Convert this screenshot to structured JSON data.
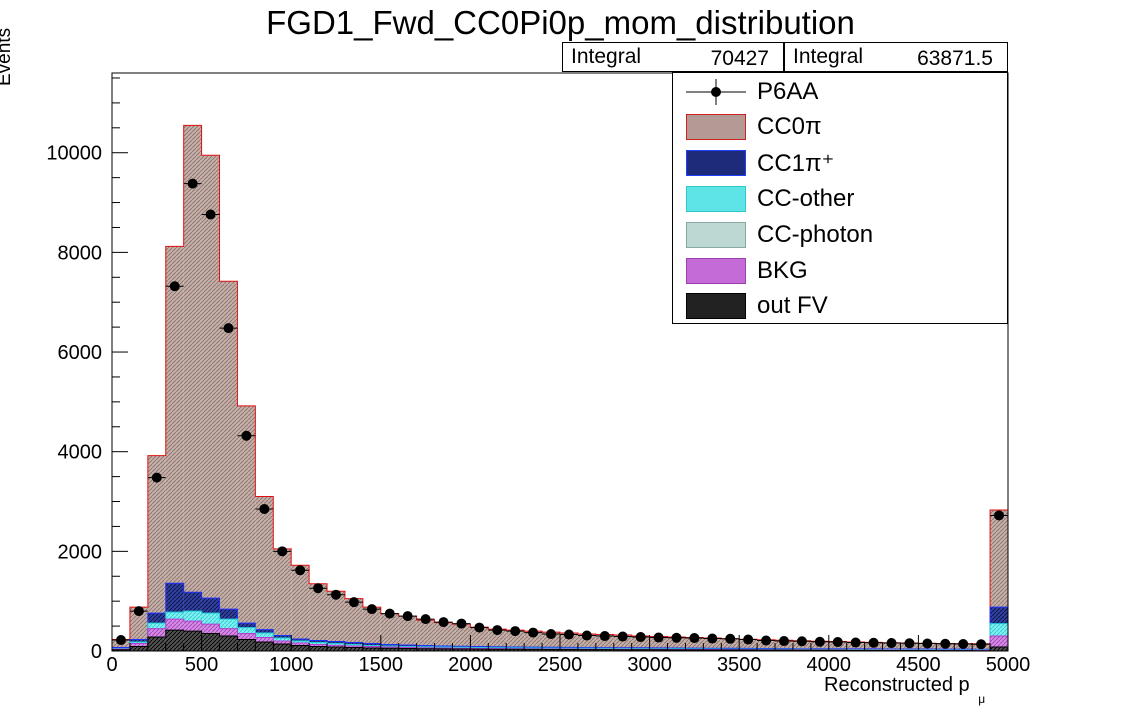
{
  "chart_data": {
    "type": "bar",
    "title": "FGD1_Fwd_CC0Pi0p_mom_distribution",
    "xlabel": "Reconstructed p",
    "xlabel_sub": "μ",
    "ylabel": "Events",
    "xlim": [
      0,
      5000
    ],
    "ylim": [
      0,
      11600
    ],
    "bin_width": 100,
    "x_ticks": [
      0,
      500,
      1000,
      1500,
      2000,
      2500,
      3000,
      3500,
      4000,
      4500,
      5000
    ],
    "y_ticks": [
      0,
      2000,
      4000,
      6000,
      8000,
      10000
    ],
    "grid": false,
    "legend_position": "top-right",
    "stats": [
      {
        "label": "Integral",
        "value": "70427"
      },
      {
        "label": "Integral",
        "value": "63871.5"
      }
    ],
    "stack_totals": [
      230,
      880,
      3920,
      8120,
      10550,
      9950,
      7420,
      4920,
      3100,
      2050,
      1720,
      1350,
      1200,
      1050,
      880,
      750,
      700,
      620,
      570,
      540,
      480,
      440,
      420,
      400,
      380,
      360,
      340,
      330,
      320,
      300,
      290,
      280,
      270,
      260,
      245,
      235,
      225,
      215,
      205,
      195,
      190,
      180,
      172,
      165,
      160,
      155,
      150,
      148,
      145,
      2830
    ],
    "cc1pi_top": [
      70,
      230,
      760,
      1360,
      1180,
      1060,
      840,
      560,
      430,
      310,
      240,
      210,
      190,
      170,
      150,
      130,
      120,
      110,
      100,
      95,
      90,
      85,
      80,
      78,
      75,
      72,
      70,
      68,
      66,
      64,
      62,
      60,
      58,
      56,
      54,
      52,
      50,
      48,
      46,
      45,
      44,
      43,
      42,
      41,
      40,
      39,
      38,
      37,
      36,
      880
    ],
    "ccother_top": [
      50,
      180,
      560,
      780,
      800,
      760,
      640,
      470,
      360,
      260,
      200,
      170,
      150,
      130,
      110,
      100,
      90,
      85,
      80,
      75,
      70,
      66,
      62,
      60,
      58,
      56,
      54,
      52,
      50,
      48,
      46,
      44,
      42,
      40,
      38,
      37,
      36,
      35,
      34,
      33,
      32,
      31,
      30,
      29,
      28,
      27,
      26,
      25,
      24,
      550
    ],
    "bkg_top": [
      40,
      150,
      450,
      640,
      600,
      540,
      450,
      350,
      270,
      200,
      160,
      130,
      115,
      100,
      90,
      80,
      72,
      66,
      60,
      56,
      52,
      48,
      45,
      43,
      41,
      39,
      37,
      35,
      34,
      33,
      32,
      31,
      30,
      29,
      28,
      27,
      26,
      25,
      24,
      23,
      22,
      21,
      20,
      19,
      18,
      17,
      16,
      15,
      14,
      300
    ],
    "outfv_top": [
      25,
      90,
      280,
      420,
      400,
      350,
      300,
      230,
      180,
      140,
      110,
      90,
      80,
      70,
      60,
      55,
      50,
      45,
      42,
      40,
      38,
      36,
      34,
      32,
      30,
      29,
      28,
      27,
      26,
      25,
      24,
      23,
      22,
      21,
      20,
      19,
      18,
      17,
      16,
      15,
      14,
      13,
      12,
      11,
      10,
      9,
      8,
      7,
      6,
      80
    ],
    "data_points": [
      220,
      800,
      3480,
      7320,
      9380,
      8760,
      6480,
      4320,
      2850,
      2000,
      1620,
      1260,
      1130,
      980,
      840,
      750,
      700,
      640,
      580,
      550,
      470,
      420,
      400,
      370,
      340,
      330,
      310,
      300,
      290,
      280,
      270,
      265,
      260,
      250,
      245,
      230,
      210,
      200,
      195,
      185,
      180,
      170,
      165,
      160,
      155,
      150,
      145,
      140,
      135,
      2720
    ],
    "series": [
      {
        "name": "P6AA",
        "color": "#000000"
      },
      {
        "name": "CC0π",
        "color": "#b39a94"
      },
      {
        "name": "CC1π⁺",
        "color": "#1e2a7a"
      },
      {
        "name": "CC-other",
        "color": "#5ee3e6"
      },
      {
        "name": "CC-photon",
        "color": "#bdd7d2"
      },
      {
        "name": "BKG",
        "color": "#c56bd8"
      },
      {
        "name": "out FV",
        "color": "#222222"
      }
    ]
  }
}
